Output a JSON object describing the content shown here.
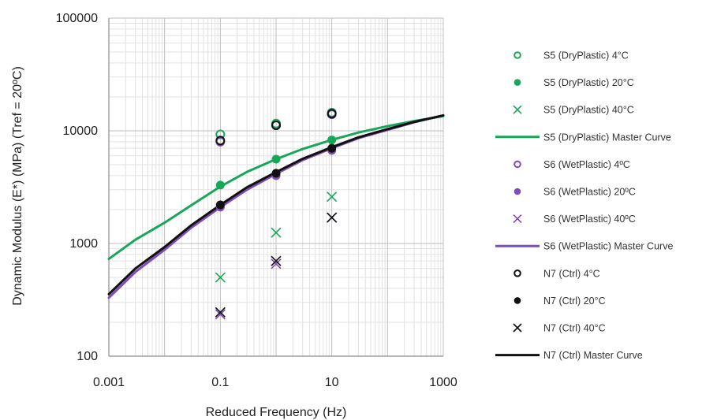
{
  "chart_data": {
    "type": "scatter",
    "title": "",
    "xlabel": "Reduced Frequency (Hz)",
    "ylabel": "Dynamic Modulus (E*) (MPa) (Tref = 20ºC)",
    "x_scale": "log",
    "y_scale": "log",
    "xlim": [
      0.001,
      1000
    ],
    "ylim": [
      100,
      100000
    ],
    "x_ticks": [
      "0.001",
      "0.1",
      "10",
      "1000"
    ],
    "y_ticks": [
      "100",
      "1000",
      "10000",
      "100000"
    ],
    "x_tick_values": [
      0.001,
      0.1,
      10,
      1000
    ],
    "y_tick_values": [
      100,
      1000,
      10000,
      100000
    ],
    "grid": true,
    "legend_position": "right",
    "colors": {
      "s5": "#1aa65a",
      "s6": "#7f4cb8",
      "n7": "#111111"
    },
    "series": [
      {
        "name": "S5 (DryPlastic) 4°C",
        "kind": "markers",
        "marker": "open-circle",
        "color": "#1aa65a",
        "points": [
          [
            0.1,
            9300
          ],
          [
            1,
            11600
          ],
          [
            10,
            14500
          ]
        ]
      },
      {
        "name": "S5 (DryPlastic) 20°C",
        "kind": "markers",
        "marker": "filled-circle",
        "color": "#1aa65a",
        "points": [
          [
            0.1,
            3300
          ],
          [
            1,
            5600
          ],
          [
            10,
            8300
          ]
        ]
      },
      {
        "name": "S5 (DryPlastic) 40°C",
        "kind": "markers",
        "marker": "x",
        "color": "#1aa65a",
        "points": [
          [
            0.1,
            500
          ],
          [
            1,
            1250
          ],
          [
            10,
            2600
          ]
        ]
      },
      {
        "name": "S5 (DryPlastic) Master Curve",
        "kind": "line",
        "color": "#1aa65a",
        "points": [
          [
            0.001,
            730
          ],
          [
            0.003,
            1080
          ],
          [
            0.01,
            1530
          ],
          [
            0.03,
            2180
          ],
          [
            0.1,
            3200
          ],
          [
            0.3,
            4320
          ],
          [
            1,
            5600
          ],
          [
            3,
            6900
          ],
          [
            10,
            8300
          ],
          [
            30,
            9650
          ],
          [
            100,
            11000
          ],
          [
            300,
            12200
          ],
          [
            1000,
            13500
          ]
        ]
      },
      {
        "name": "S6 (WetPlastic) 4ºC",
        "kind": "markers",
        "marker": "open-circle",
        "color": "#7f4cb8",
        "points": [
          [
            0.1,
            8000
          ],
          [
            1,
            11200
          ],
          [
            10,
            14000
          ]
        ]
      },
      {
        "name": "S6 (WetPlastic) 20ºC",
        "kind": "markers",
        "marker": "filled-circle",
        "color": "#7f4cb8",
        "points": [
          [
            0.1,
            2100
          ],
          [
            1,
            4000
          ],
          [
            10,
            6700
          ]
        ]
      },
      {
        "name": "S6 (WetPlastic) 40ºC",
        "kind": "markers",
        "marker": "x",
        "color": "#7f4cb8",
        "points": [
          [
            0.1,
            235
          ],
          [
            1,
            660
          ],
          [
            10,
            1700
          ]
        ]
      },
      {
        "name": "S6 (WetPlastic) Master Curve",
        "kind": "line",
        "color": "#7f4cb8",
        "points": [
          [
            0.001,
            330
          ],
          [
            0.003,
            560
          ],
          [
            0.01,
            880
          ],
          [
            0.03,
            1380
          ],
          [
            0.1,
            2100
          ],
          [
            0.3,
            3000
          ],
          [
            1,
            4150
          ],
          [
            3,
            5500
          ],
          [
            10,
            7000
          ],
          [
            30,
            8600
          ],
          [
            100,
            10200
          ],
          [
            300,
            11900
          ],
          [
            1000,
            13700
          ]
        ]
      },
      {
        "name": "N7 (Ctrl) 4°C",
        "kind": "markers",
        "marker": "open-circle",
        "color": "#111111",
        "points": [
          [
            0.1,
            8200
          ],
          [
            1,
            11200
          ],
          [
            10,
            14200
          ]
        ]
      },
      {
        "name": "N7 (Ctrl) 20°C",
        "kind": "markers",
        "marker": "filled-circle",
        "color": "#111111",
        "points": [
          [
            0.1,
            2200
          ],
          [
            1,
            4200
          ],
          [
            10,
            7000
          ]
        ]
      },
      {
        "name": "N7 (Ctrl) 40°C",
        "kind": "markers",
        "marker": "x",
        "color": "#111111",
        "points": [
          [
            0.1,
            245
          ],
          [
            1,
            700
          ],
          [
            10,
            1700
          ]
        ]
      },
      {
        "name": "N7 (Ctrl) Master Curve",
        "kind": "line",
        "color": "#111111",
        "points": [
          [
            0.001,
            355
          ],
          [
            0.003,
            600
          ],
          [
            0.01,
            930
          ],
          [
            0.03,
            1450
          ],
          [
            0.1,
            2200
          ],
          [
            0.3,
            3150
          ],
          [
            1,
            4300
          ],
          [
            3,
            5650
          ],
          [
            10,
            7150
          ],
          [
            30,
            8750
          ],
          [
            100,
            10350
          ],
          [
            300,
            12000
          ],
          [
            1000,
            13700
          ]
        ]
      }
    ]
  }
}
